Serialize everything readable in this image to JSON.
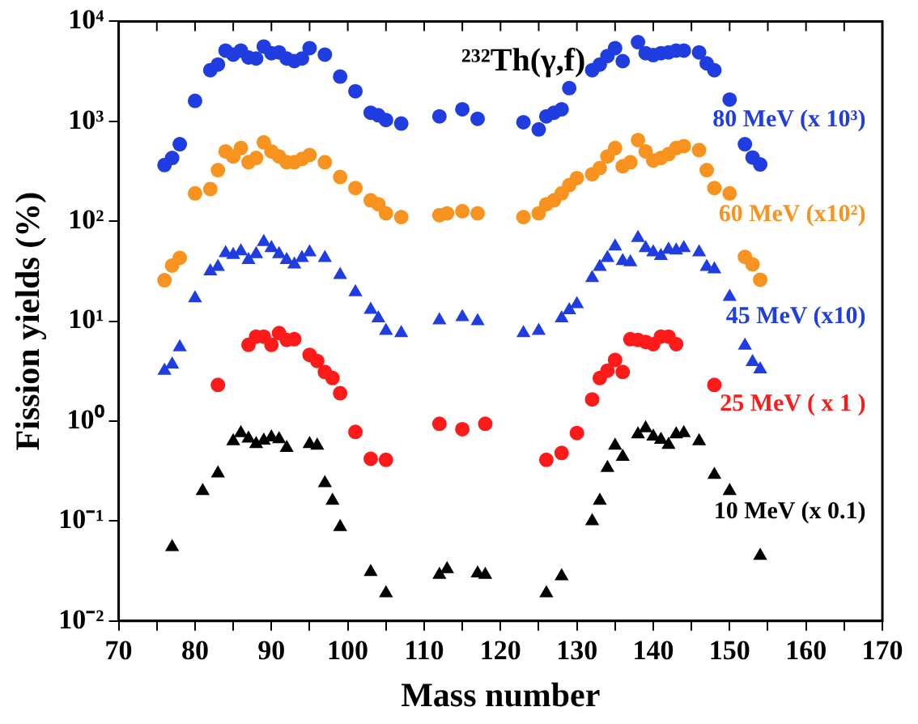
{
  "chart_data": {
    "type": "scatter",
    "title": "²³²Th(γ,f)",
    "xlabel": "Mass number",
    "ylabel": "Fission yields (%)",
    "log": "y",
    "grid": false,
    "legend": "right",
    "xlim": [
      70,
      170
    ],
    "xticks": [
      70,
      {
        "value": 75,
        "label": null
      },
      80,
      {
        "value": 85,
        "label": null
      },
      90,
      {
        "value": 95,
        "label": null
      },
      100,
      {
        "value": 105,
        "label": null
      },
      110,
      {
        "value": 115,
        "label": null
      },
      120,
      {
        "value": 125,
        "label": null
      },
      130,
      {
        "value": 135,
        "label": null
      },
      140,
      {
        "value": 145,
        "label": null
      },
      150,
      {
        "value": 155,
        "label": null
      },
      160,
      {
        "value": 165,
        "label": null
      },
      170
    ],
    "ylim": [
      0.01,
      10000
    ],
    "yticks": [
      {
        "value": 0.01,
        "label": "10⁻²"
      },
      {
        "value": 0.1,
        "label": "10⁻¹"
      },
      {
        "value": 1,
        "label": "10⁰"
      },
      {
        "value": 10,
        "label": "10¹"
      },
      {
        "value": 100,
        "label": "10²"
      },
      {
        "value": 1000,
        "label": "10³"
      },
      {
        "value": 10000,
        "label": "10⁴"
      }
    ],
    "series": [
      {
        "name": "80 MeV (x 10³)",
        "color": "#1f3de0",
        "marker": "circle",
        "x": [
          76,
          77,
          78,
          80,
          82,
          83,
          84,
          85,
          86,
          87,
          88,
          89,
          90,
          91,
          92,
          93,
          94,
          95,
          97,
          99,
          101,
          103,
          104,
          105,
          107,
          112,
          115,
          117,
          123,
          125,
          126,
          127,
          128,
          129,
          132,
          133,
          134,
          135,
          136,
          138,
          139,
          140,
          141,
          142,
          143,
          144,
          146,
          147,
          148,
          150,
          152,
          153,
          154
        ],
        "values": [
          365,
          430,
          590,
          1600,
          3250,
          3700,
          5100,
          4650,
          5100,
          4350,
          4250,
          5600,
          4800,
          4900,
          4250,
          4000,
          4250,
          5400,
          4650,
          2800,
          2000,
          1220,
          1150,
          1030,
          950,
          1120,
          1320,
          1060,
          980,
          830,
          1120,
          1220,
          1320,
          2150,
          3250,
          3700,
          4500,
          5400,
          4000,
          6200,
          4800,
          4600,
          4800,
          4900,
          5100,
          5100,
          4900,
          3800,
          3250,
          1650,
          590,
          435,
          370
        ]
      },
      {
        "name": "60 MeV (x10²)",
        "color": "#f7931e",
        "marker": "circle",
        "x": [
          76,
          77,
          78,
          80,
          82,
          83,
          84,
          85,
          86,
          87,
          88,
          89,
          90,
          91,
          92,
          93,
          94,
          95,
          97,
          99,
          101,
          103,
          104,
          105,
          107,
          112,
          113,
          115,
          117,
          123,
          125,
          126,
          127,
          128,
          129,
          130,
          132,
          133,
          134,
          135,
          136,
          137,
          138,
          139,
          140,
          141,
          142,
          143,
          144,
          146,
          147,
          148,
          150,
          152,
          153,
          154
        ],
        "values": [
          25.7,
          36,
          43,
          190,
          210,
          325,
          500,
          445,
          540,
          390,
          430,
          615,
          500,
          445,
          390,
          390,
          420,
          460,
          390,
          277,
          215,
          162,
          148,
          120,
          110,
          115,
          120,
          126,
          120,
          110,
          120,
          148,
          162,
          190,
          230,
          270,
          295,
          340,
          445,
          540,
          355,
          390,
          650,
          500,
          405,
          430,
          470,
          540,
          565,
          515,
          325,
          215,
          190,
          44,
          37,
          26
        ]
      },
      {
        "name": "45 MeV (x10)",
        "color": "#1f3de0",
        "marker": "triangle",
        "x": [
          76,
          77,
          78,
          80,
          82,
          83,
          84,
          85,
          86,
          87,
          88,
          89,
          90,
          91,
          92,
          93,
          94,
          95,
          97,
          99,
          101,
          103,
          104,
          105,
          107,
          112,
          115,
          117,
          123,
          125,
          128,
          129,
          130,
          132,
          133,
          134,
          135,
          136,
          137,
          138,
          139,
          140,
          141,
          142,
          143,
          144,
          146,
          147,
          148,
          150,
          152,
          153,
          154
        ],
        "values": [
          3.2,
          3.7,
          5.5,
          17,
          31.6,
          35,
          48,
          46,
          50,
          41,
          47,
          62,
          54,
          47,
          41,
          37,
          43,
          49,
          43,
          29,
          19.5,
          13,
          10.7,
          8,
          7.6,
          10.2,
          11,
          10,
          7.6,
          8,
          10.7,
          12.9,
          14.8,
          27,
          35,
          43,
          56,
          40,
          39,
          68,
          54,
          49,
          45,
          52,
          51,
          54,
          49,
          35,
          33,
          17.5,
          5.7,
          3.9,
          3.3
        ]
      },
      {
        "name": "25 MeV ( x 1 )",
        "color": "#ff1a1a",
        "marker": "circle",
        "x": [
          83,
          87,
          88,
          89,
          90,
          91,
          92,
          93,
          95,
          96,
          97,
          98,
          99,
          101,
          103,
          105,
          112,
          115,
          118,
          126,
          128,
          130,
          132,
          133,
          134,
          135,
          136,
          137,
          138,
          139,
          140,
          141,
          142,
          143,
          148
        ],
        "values": [
          2.3,
          5.8,
          7,
          7,
          5.8,
          7.6,
          6.5,
          6.6,
          4.6,
          4.0,
          3.1,
          2.7,
          1.9,
          0.78,
          0.42,
          0.41,
          0.94,
          0.83,
          0.94,
          0.41,
          0.48,
          0.76,
          1.65,
          2.7,
          3.2,
          4.1,
          3.1,
          6.6,
          6.5,
          6.2,
          5.9,
          7.0,
          7.0,
          5.9,
          2.3
        ]
      },
      {
        "name": "10 MeV (x 0.1)",
        "color": "#000000",
        "marker": "triangle",
        "x": [
          77,
          81,
          83,
          85,
          86,
          87,
          88,
          89,
          90,
          91,
          92,
          95,
          96,
          97,
          98,
          99,
          103,
          105,
          112,
          113,
          117,
          118,
          126,
          128,
          132,
          133,
          134,
          135,
          136,
          138,
          139,
          140,
          141,
          142,
          143,
          144,
          146,
          148,
          150,
          154
        ],
        "values": [
          0.055,
          0.2,
          0.3,
          0.63,
          0.76,
          0.67,
          0.59,
          0.64,
          0.69,
          0.66,
          0.54,
          0.59,
          0.57,
          0.24,
          0.16,
          0.087,
          0.031,
          0.019,
          0.029,
          0.033,
          0.03,
          0.029,
          0.019,
          0.028,
          0.1,
          0.16,
          0.34,
          0.57,
          0.44,
          0.74,
          0.85,
          0.7,
          0.65,
          0.58,
          0.74,
          0.76,
          0.63,
          0.29,
          0.2,
          0.045
        ]
      }
    ]
  }
}
